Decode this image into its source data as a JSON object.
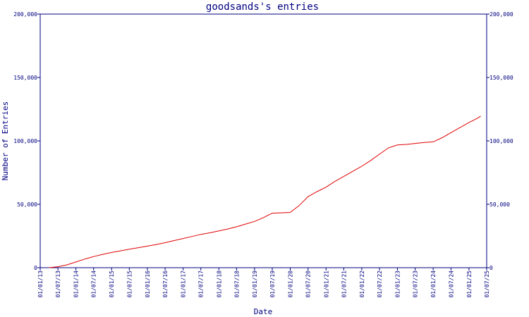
{
  "chart_data": {
    "type": "line",
    "title": "goodsands's entries",
    "xlabel": "Date",
    "ylabel": "Number of Entries",
    "ylim": [
      0,
      200000
    ],
    "yticks": [
      0,
      50000,
      100000,
      150000,
      200000
    ],
    "ytick_labels": [
      "0",
      "50,000",
      "100,000",
      "150,000",
      "200,000"
    ],
    "xlim": [
      "01/01/13",
      "01/07/25"
    ],
    "xtick_labels": [
      "01/01/13",
      "01/07/13",
      "01/01/14",
      "01/07/14",
      "01/01/15",
      "01/07/15",
      "01/01/16",
      "01/07/16",
      "01/01/17",
      "01/07/17",
      "01/01/18",
      "01/07/18",
      "01/01/19",
      "01/07/19",
      "01/01/20",
      "01/07/20",
      "01/01/21",
      "01/07/21",
      "01/01/22",
      "01/07/22",
      "01/01/23",
      "01/07/23",
      "01/01/24",
      "01/07/24",
      "01/01/25",
      "01/07/25"
    ],
    "grid": false,
    "series": [
      {
        "color": "#e00000",
        "points": [
          [
            "01/04/13",
            0
          ],
          [
            "01/07/13",
            800
          ],
          [
            "01/10/13",
            2200
          ],
          [
            "01/01/14",
            4500
          ],
          [
            "01/04/14",
            6800
          ],
          [
            "01/07/14",
            8800
          ],
          [
            "01/10/14",
            10500
          ],
          [
            "01/01/15",
            12000
          ],
          [
            "01/04/15",
            13300
          ],
          [
            "01/07/15",
            14600
          ],
          [
            "01/10/15",
            15800
          ],
          [
            "01/01/16",
            17000
          ],
          [
            "01/04/16",
            18300
          ],
          [
            "01/07/16",
            19700
          ],
          [
            "01/10/16",
            21400
          ],
          [
            "01/01/17",
            23000
          ],
          [
            "01/04/17",
            24600
          ],
          [
            "01/07/17",
            26300
          ],
          [
            "01/10/17",
            27500
          ],
          [
            "01/01/18",
            29000
          ],
          [
            "01/04/18",
            30500
          ],
          [
            "01/07/18",
            32300
          ],
          [
            "01/10/18",
            34400
          ],
          [
            "01/01/19",
            36500
          ],
          [
            "01/04/19",
            39500
          ],
          [
            "01/07/19",
            43000
          ],
          [
            "01/10/19",
            43300
          ],
          [
            "01/01/20",
            43600
          ],
          [
            "01/04/20",
            49000
          ],
          [
            "01/07/20",
            56000
          ],
          [
            "01/10/20",
            60000
          ],
          [
            "01/01/21",
            63500
          ],
          [
            "01/04/21",
            68000
          ],
          [
            "01/07/21",
            72000
          ],
          [
            "01/10/21",
            76000
          ],
          [
            "01/01/22",
            80000
          ],
          [
            "01/04/22",
            84500
          ],
          [
            "01/07/22",
            89500
          ],
          [
            "01/10/22",
            94500
          ],
          [
            "01/01/23",
            96800
          ],
          [
            "01/04/23",
            97200
          ],
          [
            "01/07/23",
            98000
          ],
          [
            "01/10/23",
            98800
          ],
          [
            "01/01/24",
            99200
          ],
          [
            "01/04/24",
            102500
          ],
          [
            "01/07/24",
            106500
          ],
          [
            "01/10/24",
            110500
          ],
          [
            "01/01/25",
            114500
          ],
          [
            "01/04/25",
            118000
          ],
          [
            "01/05/25",
            119500
          ]
        ]
      }
    ]
  }
}
